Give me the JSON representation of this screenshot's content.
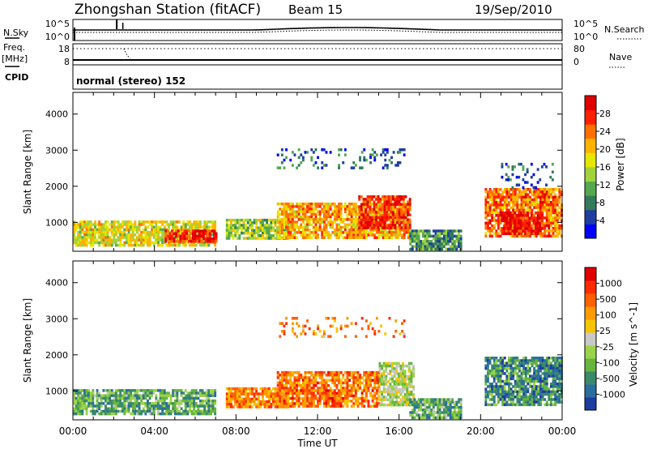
{
  "header": {
    "station": "Zhongshan Station (fitACF)",
    "beam": "Beam 15",
    "date": "19/Sep/2010"
  },
  "status_panel": {
    "nsky_label": "N.Sky",
    "nsky_ticks": [
      "10^5",
      "10^0"
    ],
    "nsearch_label": "N.Search",
    "nsearch_ticks": [
      "10^5",
      "10^0"
    ],
    "freq_label": "Freq.",
    "freq_unit": "[MHz]",
    "freq_ticks": [
      "18",
      "8"
    ],
    "nave_label": "Nave",
    "nave_ticks": [
      "80",
      "0"
    ],
    "cpid_label": "CPID",
    "cpid_value": "normal (stereo) 152"
  },
  "colors": {
    "power": [
      "#0000ff",
      "#1f3ea0",
      "#347a5a",
      "#55a84f",
      "#a0d23c",
      "#e6e600",
      "#ffb300",
      "#ff7000",
      "#ff2000",
      "#e00000"
    ],
    "velocity": [
      "#1e3ca0",
      "#2c6e9e",
      "#3a8a6a",
      "#67b43f",
      "#9bd34a",
      "#c8c8c8",
      "#f5c400",
      "#ff9a00",
      "#ff6000",
      "#ff2a00",
      "#e00000"
    ]
  },
  "chart_data": [
    {
      "type": "heatmap",
      "name": "power",
      "ylabel": "Slant Range [km]",
      "yticks": [
        "4000",
        "3000",
        "2000",
        "1000"
      ],
      "ylim": [
        200,
        4600
      ],
      "xticks": [
        "00:00",
        "04:00",
        "08:00",
        "12:00",
        "16:00",
        "20:00",
        "00:00"
      ],
      "xlim": [
        0,
        24
      ],
      "colorbar_label": "Power [dB]",
      "colorbar_ticks": [
        "28",
        "24",
        "20",
        "16",
        "12",
        "8",
        "4"
      ],
      "colorbar_range": [
        0,
        32
      ],
      "regions": [
        {
          "t0": 0.0,
          "t1": 7.0,
          "r0": 350,
          "r1": 1050,
          "level": 0.55
        },
        {
          "t0": 4.5,
          "t1": 7.0,
          "r0": 450,
          "r1": 800,
          "level": 0.88
        },
        {
          "t0": 7.5,
          "t1": 10.5,
          "r0": 550,
          "r1": 1100,
          "level": 0.45
        },
        {
          "t0": 10.0,
          "t1": 16.5,
          "r0": 550,
          "r1": 1550,
          "level": 0.65
        },
        {
          "t0": 14.0,
          "t1": 16.5,
          "r0": 850,
          "r1": 1750,
          "level": 0.85
        },
        {
          "t0": 16.5,
          "t1": 19.0,
          "r0": 250,
          "r1": 800,
          "level": 0.3
        },
        {
          "t0": 20.2,
          "t1": 24.0,
          "r0": 600,
          "r1": 1950,
          "level": 0.75
        },
        {
          "t0": 21.0,
          "t1": 23.0,
          "r0": 700,
          "r1": 1300,
          "level": 0.95
        },
        {
          "t0": 10.0,
          "t1": 16.3,
          "r0": 2500,
          "r1": 3050,
          "level": 0.2
        },
        {
          "t0": 21.0,
          "t1": 23.5,
          "r0": 2000,
          "r1": 2650,
          "level": 0.2
        }
      ]
    },
    {
      "type": "heatmap",
      "name": "velocity",
      "ylabel": "Slant Range [km]",
      "yticks": [
        "4000",
        "3000",
        "2000",
        "1000"
      ],
      "ylim": [
        200,
        4600
      ],
      "xticks": [
        "00:00",
        "04:00",
        "08:00",
        "12:00",
        "16:00",
        "20:00",
        "00:00"
      ],
      "xlim": [
        0,
        24
      ],
      "xlabel": "Time UT",
      "colorbar_label": "Velocity [m s^-1]",
      "colorbar_ticks": [
        "1000",
        "500",
        "100",
        "25",
        "-25",
        "-100",
        "-500",
        "-1000"
      ],
      "regions": [
        {
          "t0": 0.0,
          "t1": 7.0,
          "r0": 350,
          "r1": 1050,
          "level": 0.3
        },
        {
          "t0": 7.5,
          "t1": 10.5,
          "r0": 550,
          "r1": 1100,
          "level": 0.72
        },
        {
          "t0": 10.0,
          "t1": 15.0,
          "r0": 550,
          "r1": 1550,
          "level": 0.75
        },
        {
          "t0": 15.0,
          "t1": 16.7,
          "r0": 600,
          "r1": 1800,
          "level": 0.45
        },
        {
          "t0": 16.5,
          "t1": 19.0,
          "r0": 250,
          "r1": 800,
          "level": 0.3
        },
        {
          "t0": 20.2,
          "t1": 24.0,
          "r0": 600,
          "r1": 1950,
          "level": 0.22
        },
        {
          "t0": 10.0,
          "t1": 16.3,
          "r0": 2500,
          "r1": 3050,
          "level": 0.7
        }
      ]
    }
  ]
}
